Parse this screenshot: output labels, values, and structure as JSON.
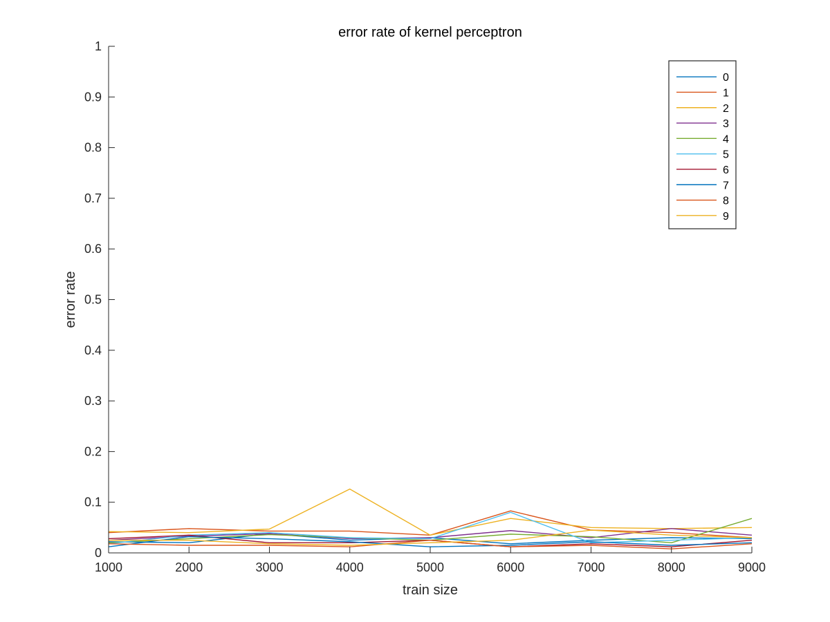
{
  "chart_data": {
    "type": "line",
    "title": "error rate of kernel perceptron",
    "xlabel": "train size",
    "ylabel": "error rate",
    "xlim": [
      1000,
      9000
    ],
    "ylim": [
      0,
      1
    ],
    "x": [
      1000,
      2000,
      3000,
      4000,
      5000,
      6000,
      7000,
      8000,
      9000
    ],
    "xticks": [
      "1000",
      "2000",
      "3000",
      "4000",
      "5000",
      "6000",
      "7000",
      "8000",
      "9000"
    ],
    "yticks": [
      "0",
      "0.1",
      "0.2",
      "0.3",
      "0.4",
      "0.5",
      "0.6",
      "0.7",
      "0.8",
      "0.9",
      "1"
    ],
    "grid": false,
    "legend_position": "top-right",
    "series": [
      {
        "name": "0",
        "color": "#0072BD",
        "values": [
          0.022,
          0.02,
          0.038,
          0.025,
          0.03,
          0.018,
          0.025,
          0.03,
          0.028
        ]
      },
      {
        "name": "1",
        "color": "#D95319",
        "values": [
          0.04,
          0.048,
          0.043,
          0.043,
          0.035,
          0.083,
          0.045,
          0.04,
          0.03
        ]
      },
      {
        "name": "2",
        "color": "#EDB120",
        "values": [
          0.042,
          0.04,
          0.047,
          0.126,
          0.035,
          0.068,
          0.05,
          0.048,
          0.05
        ]
      },
      {
        "name": "3",
        "color": "#7E2F8E",
        "values": [
          0.025,
          0.033,
          0.038,
          0.028,
          0.03,
          0.044,
          0.03,
          0.048,
          0.035
        ]
      },
      {
        "name": "4",
        "color": "#77AC30",
        "values": [
          0.02,
          0.028,
          0.036,
          0.03,
          0.025,
          0.037,
          0.032,
          0.02,
          0.068
        ]
      },
      {
        "name": "5",
        "color": "#4DBEEE",
        "values": [
          0.018,
          0.035,
          0.04,
          0.03,
          0.028,
          0.08,
          0.02,
          0.025,
          0.03
        ]
      },
      {
        "name": "6",
        "color": "#A2142F",
        "values": [
          0.028,
          0.035,
          0.02,
          0.02,
          0.025,
          0.012,
          0.018,
          0.012,
          0.025
        ]
      },
      {
        "name": "7",
        "color": "#0072BD",
        "values": [
          0.012,
          0.032,
          0.028,
          0.022,
          0.012,
          0.015,
          0.022,
          0.015,
          0.02
        ]
      },
      {
        "name": "8",
        "color": "#D95319",
        "values": [
          0.018,
          0.015,
          0.015,
          0.012,
          0.025,
          0.012,
          0.015,
          0.008,
          0.018
        ]
      },
      {
        "name": "9",
        "color": "#EDB120",
        "values": [
          0.025,
          0.025,
          0.018,
          0.015,
          0.02,
          0.025,
          0.045,
          0.035,
          0.03
        ]
      }
    ]
  }
}
